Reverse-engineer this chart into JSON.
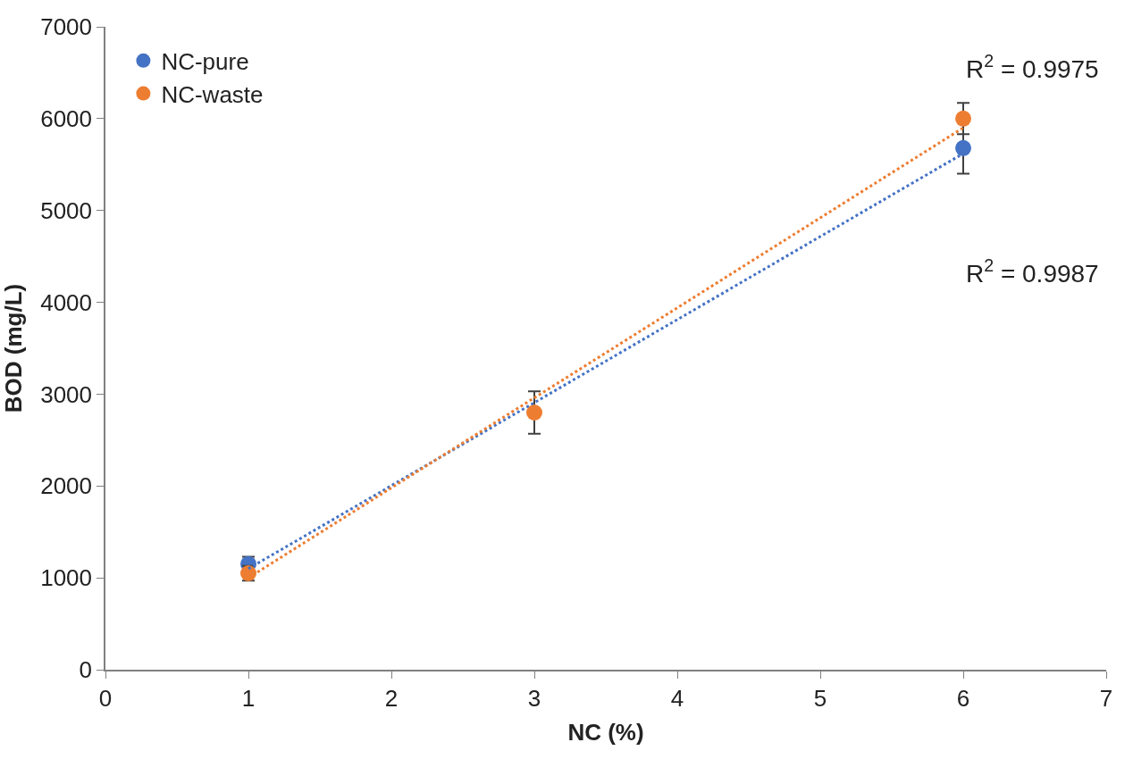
{
  "chart_data": {
    "type": "scatter",
    "xlabel": "NC (%)",
    "ylabel": "BOD (mg/L)",
    "xlim": [
      0,
      7
    ],
    "xticks": [
      0,
      1,
      2,
      3,
      4,
      5,
      6,
      7
    ],
    "ylim": [
      0,
      7000
    ],
    "yticks": [
      0,
      1000,
      2000,
      3000,
      4000,
      5000,
      6000,
      7000
    ],
    "legend": "top left",
    "series": [
      {
        "name": "NC-pure",
        "marker": "circle",
        "color": "#4472c4",
        "x": [
          1,
          3,
          6
        ],
        "values": [
          1150,
          null,
          5680
        ],
        "errors": [
          80,
          null,
          280
        ]
      },
      {
        "name": "NC-waste",
        "marker": "circle",
        "color": "#ed7d31",
        "x": [
          1,
          3,
          6
        ],
        "values": [
          1050,
          2800,
          6000
        ],
        "errors": [
          80,
          230,
          170
        ]
      },
      {
        "type": "line",
        "color": "#4472c4",
        "line_style": "dotted",
        "x": [
          1,
          6
        ],
        "values": [
          1100,
          5620
        ]
      },
      {
        "type": "line",
        "color": "#ed7d31",
        "line_style": "dotted",
        "x": [
          1,
          6
        ],
        "values": [
          1000,
          5900
        ]
      }
    ],
    "annotations": [
      "R$^{2}$ = 0.9975",
      "R$^{2}$ = 0.9987"
    ]
  }
}
